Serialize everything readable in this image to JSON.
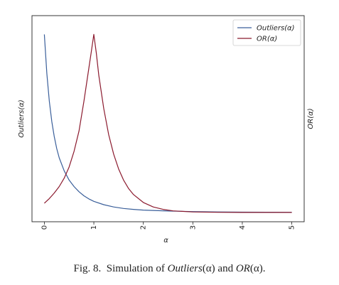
{
  "chart_data": {
    "type": "line",
    "xlabel": "α",
    "ylabel_left": "Outliers(α)",
    "ylabel_right": "OR(α)",
    "xlim": [
      -0.25,
      5.25
    ],
    "xticks": [
      0,
      1,
      2,
      3,
      4,
      5
    ],
    "y_tick_labels_shown": false,
    "grid": false,
    "legend_position": "top-right",
    "series": [
      {
        "name": "Outliers(α)",
        "color": "#3a5f9a",
        "axis": "left",
        "ylim": [
          0,
          1.0
        ],
        "x": [
          0,
          0.05,
          0.1,
          0.15,
          0.2,
          0.25,
          0.3,
          0.4,
          0.5,
          0.6,
          0.7,
          0.8,
          0.9,
          1.0,
          1.2,
          1.4,
          1.6,
          1.8,
          2.0,
          2.5,
          3.0,
          3.5,
          4.0,
          4.5,
          5.0
        ],
        "y": [
          0.96,
          0.75,
          0.6,
          0.49,
          0.41,
          0.345,
          0.295,
          0.225,
          0.175,
          0.14,
          0.112,
          0.09,
          0.073,
          0.06,
          0.042,
          0.03,
          0.022,
          0.017,
          0.013,
          0.008,
          0.005,
          0.003,
          0.002,
          0.0015,
          0.001
        ]
      },
      {
        "name": "OR(α)",
        "color": "#8b1a2e",
        "axis": "right",
        "ylim": [
          0,
          1.0
        ],
        "x": [
          0,
          0.1,
          0.2,
          0.3,
          0.4,
          0.5,
          0.6,
          0.7,
          0.8,
          0.9,
          0.95,
          1.0,
          1.05,
          1.1,
          1.2,
          1.3,
          1.4,
          1.5,
          1.6,
          1.7,
          1.8,
          2.0,
          2.2,
          2.4,
          2.6,
          3.0,
          3.5,
          4.0,
          5.0
        ],
        "y": [
          0.05,
          0.075,
          0.105,
          0.14,
          0.185,
          0.245,
          0.33,
          0.44,
          0.6,
          0.78,
          0.87,
          0.96,
          0.86,
          0.74,
          0.56,
          0.42,
          0.315,
          0.235,
          0.175,
          0.13,
          0.097,
          0.054,
          0.03,
          0.017,
          0.009,
          0.003,
          0.001,
          0.0005,
          0.0002
        ]
      }
    ]
  },
  "caption": {
    "label": "Fig. 8.",
    "text_before": "Simulation of ",
    "term1": "Outliers",
    "arg1": "(α)",
    "text_mid": " and ",
    "term2": "OR",
    "arg2": "(α)",
    "text_end": "."
  }
}
